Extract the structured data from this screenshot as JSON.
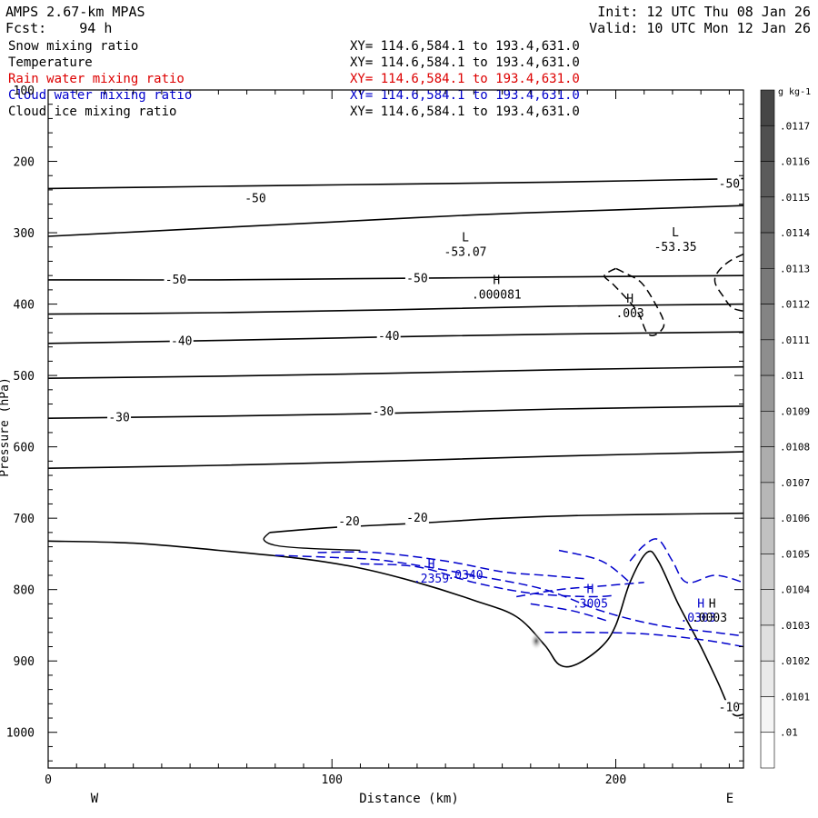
{
  "header": {
    "title": "AMPS 2.67-km MPAS",
    "fcst": "Fcst:    94 h",
    "init": "Init: 12 UTC Thu 08 Jan 26",
    "valid": "Valid: 10 UTC Mon 12 Jan 26"
  },
  "legend": [
    {
      "name": "Snow mixing ratio",
      "xy": "XY= 114.6,584.1 to 193.4,631.0",
      "color": "#000000"
    },
    {
      "name": "Temperature",
      "xy": "XY= 114.6,584.1 to 193.4,631.0",
      "color": "#000000"
    },
    {
      "name": "Rain water mixing ratio",
      "xy": "XY= 114.6,584.1 to 193.4,631.0",
      "color": "#dd0000"
    },
    {
      "name": "Cloud water mixing ratio",
      "xy": "XY= 114.6,584.1 to 193.4,631.0",
      "color": "#0000cc"
    },
    {
      "name": "Cloud ice mixing ratio",
      "xy": "XY= 114.6,584.1 to 193.4,631.0",
      "color": "#000000"
    }
  ],
  "chart_data": {
    "type": "contour",
    "title": "",
    "xlabel": "Distance (km)",
    "ylabel": "Pressure (hPa)",
    "x_ticks": [
      0,
      100,
      200
    ],
    "y_ticks": [
      100,
      200,
      300,
      400,
      500,
      600,
      700,
      800,
      900,
      1000
    ],
    "xlim": [
      0,
      245
    ],
    "ylim": [
      100,
      1050
    ],
    "y_reversed": true,
    "direction_left": "W",
    "direction_right": "E",
    "colorbar": {
      "unit": "g kg-1",
      "labels": [
        ".0117",
        ".0116",
        ".0115",
        ".0114",
        ".0113",
        ".0112",
        ".0111",
        ".011",
        ".0109",
        ".0108",
        ".0107",
        ".0106",
        ".0105",
        ".0104",
        ".0103",
        ".0102",
        ".0101",
        ".01"
      ]
    },
    "isotherms": [
      {
        "points": [
          [
            0,
            238
          ],
          [
            60,
            235
          ],
          [
            120,
            232
          ],
          [
            180,
            229
          ],
          [
            245,
            224
          ]
        ]
      },
      {
        "points": [
          [
            0,
            305
          ],
          [
            50,
            295
          ],
          [
            100,
            285
          ],
          [
            150,
            275
          ],
          [
            200,
            268
          ],
          [
            245,
            262
          ]
        ]
      },
      {
        "points": [
          [
            0,
            366
          ],
          [
            60,
            366
          ],
          [
            120,
            364
          ],
          [
            180,
            362
          ],
          [
            245,
            360
          ]
        ]
      },
      {
        "points": [
          [
            0,
            414
          ],
          [
            60,
            412
          ],
          [
            120,
            408
          ],
          [
            180,
            403
          ],
          [
            245,
            400
          ]
        ]
      },
      {
        "points": [
          [
            0,
            455
          ],
          [
            60,
            451
          ],
          [
            120,
            446
          ],
          [
            180,
            442
          ],
          [
            245,
            439
          ]
        ]
      },
      {
        "points": [
          [
            0,
            504
          ],
          [
            60,
            501
          ],
          [
            120,
            497
          ],
          [
            180,
            492
          ],
          [
            245,
            488
          ]
        ]
      },
      {
        "points": [
          [
            0,
            560
          ],
          [
            60,
            557
          ],
          [
            120,
            553
          ],
          [
            180,
            547
          ],
          [
            245,
            543
          ]
        ]
      },
      {
        "points": [
          [
            0,
            630
          ],
          [
            60,
            626
          ],
          [
            120,
            620
          ],
          [
            180,
            613
          ],
          [
            245,
            607
          ]
        ]
      },
      {
        "points": [
          [
            78,
            720
          ],
          [
            100,
            713
          ],
          [
            130,
            707
          ],
          [
            160,
            700
          ],
          [
            190,
            696
          ],
          [
            245,
            693
          ]
        ]
      }
    ],
    "isotherm_labels": [
      {
        "x": 73,
        "p": 252,
        "text": "-50"
      },
      {
        "x": 240,
        "p": 232,
        "text": "-50"
      },
      {
        "x": 45,
        "p": 366,
        "text": "-50"
      },
      {
        "x": 130,
        "p": 364,
        "text": "-50"
      },
      {
        "x": 47,
        "p": 452,
        "text": "-40"
      },
      {
        "x": 120,
        "p": 445,
        "text": "-40"
      },
      {
        "x": 25,
        "p": 559,
        "text": "-30"
      },
      {
        "x": 118,
        "p": 551,
        "text": "-30"
      },
      {
        "x": 106,
        "p": 705,
        "text": "-20"
      },
      {
        "x": 130,
        "p": 700,
        "text": "-20"
      },
      {
        "x": 240,
        "p": 965,
        "text": "-10"
      }
    ],
    "extrema": [
      {
        "x": 147,
        "p": 312,
        "kind": "L",
        "value": "-53.07",
        "color": "#000000"
      },
      {
        "x": 221,
        "p": 305,
        "kind": "L",
        "value": "-53.35",
        "color": "#000000"
      },
      {
        "x": 158,
        "p": 372,
        "kind": "H",
        "value": ".000081",
        "color": "#000000"
      },
      {
        "x": 205,
        "p": 398,
        "kind": "H",
        "value": ".003",
        "color": "#000000"
      },
      {
        "x": 135,
        "p": 770,
        "kind": "H",
        "value": ".2359",
        "color": "#0000cc"
      },
      {
        "x": 191,
        "p": 805,
        "kind": "H",
        "value": ".3005",
        "color": "#0000cc"
      },
      {
        "x": 230,
        "p": 825,
        "kind": "H",
        "value": "",
        "color": "#0000cc"
      },
      {
        "x": 234,
        "p": 825,
        "kind": "H",
        "value": "",
        "color": "#000000"
      }
    ],
    "extrema_extra_labels": [
      {
        "x": 147,
        "p": 785,
        "text": ".0340",
        "color": "#0000cc"
      },
      {
        "x": 229,
        "p": 845,
        "text": ".0303",
        "color": "#0000cc"
      },
      {
        "x": 233,
        "p": 845,
        "text": ".0003",
        "color": "#000000"
      }
    ],
    "terrain": [
      [
        0,
        732
      ],
      [
        30,
        735
      ],
      [
        60,
        745
      ],
      [
        90,
        757
      ],
      [
        110,
        770
      ],
      [
        130,
        790
      ],
      [
        150,
        815
      ],
      [
        165,
        838
      ],
      [
        175,
        878
      ],
      [
        180,
        905
      ],
      [
        186,
        905
      ],
      [
        195,
        880
      ],
      [
        200,
        850
      ],
      [
        205,
        790
      ],
      [
        211,
        748
      ],
      [
        215,
        760
      ],
      [
        222,
        820
      ],
      [
        230,
        880
      ],
      [
        236,
        930
      ],
      [
        241,
        973
      ],
      [
        245,
        975
      ]
    ],
    "cloud_ice_dashed": [
      [
        [
          200,
          350
        ],
        [
          196,
          360
        ],
        [
          199,
          372
        ],
        [
          204,
          393
        ],
        [
          208,
          413
        ],
        [
          211,
          440
        ],
        [
          214,
          443
        ],
        [
          217,
          428
        ],
        [
          214,
          400
        ],
        [
          209,
          370
        ],
        [
          203,
          356
        ],
        [
          200,
          350
        ]
      ],
      [
        [
          245,
          330
        ],
        [
          240,
          340
        ],
        [
          236,
          355
        ],
        [
          235,
          370
        ],
        [
          238,
          390
        ],
        [
          241,
          405
        ],
        [
          245,
          410
        ]
      ]
    ],
    "cloud_water_dashed": [
      [
        [
          80,
          752
        ],
        [
          100,
          755
        ],
        [
          120,
          760
        ],
        [
          150,
          780
        ],
        [
          175,
          800
        ],
        [
          195,
          830
        ],
        [
          215,
          850
        ],
        [
          235,
          860
        ],
        [
          245,
          865
        ]
      ],
      [
        [
          110,
          764
        ],
        [
          130,
          768
        ],
        [
          150,
          790
        ],
        [
          170,
          805
        ],
        [
          190,
          810
        ],
        [
          200,
          808
        ]
      ],
      [
        [
          95,
          748
        ],
        [
          115,
          748
        ],
        [
          140,
          760
        ],
        [
          160,
          775
        ],
        [
          175,
          780
        ],
        [
          190,
          785
        ]
      ],
      [
        [
          165,
          810
        ],
        [
          180,
          800
        ],
        [
          195,
          795
        ],
        [
          210,
          790
        ]
      ],
      [
        [
          175,
          860
        ],
        [
          190,
          860
        ],
        [
          210,
          862
        ],
        [
          230,
          870
        ],
        [
          245,
          880
        ]
      ],
      [
        [
          205,
          760
        ],
        [
          210,
          738
        ],
        [
          215,
          730
        ],
        [
          220,
          760
        ],
        [
          225,
          790
        ],
        [
          235,
          780
        ],
        [
          245,
          790
        ]
      ],
      [
        [
          180,
          745
        ],
        [
          195,
          760
        ],
        [
          205,
          790
        ]
      ],
      [
        [
          170,
          820
        ],
        [
          185,
          830
        ],
        [
          198,
          845
        ]
      ]
    ],
    "snow_patch": {
      "x": 172,
      "p": 872
    }
  }
}
